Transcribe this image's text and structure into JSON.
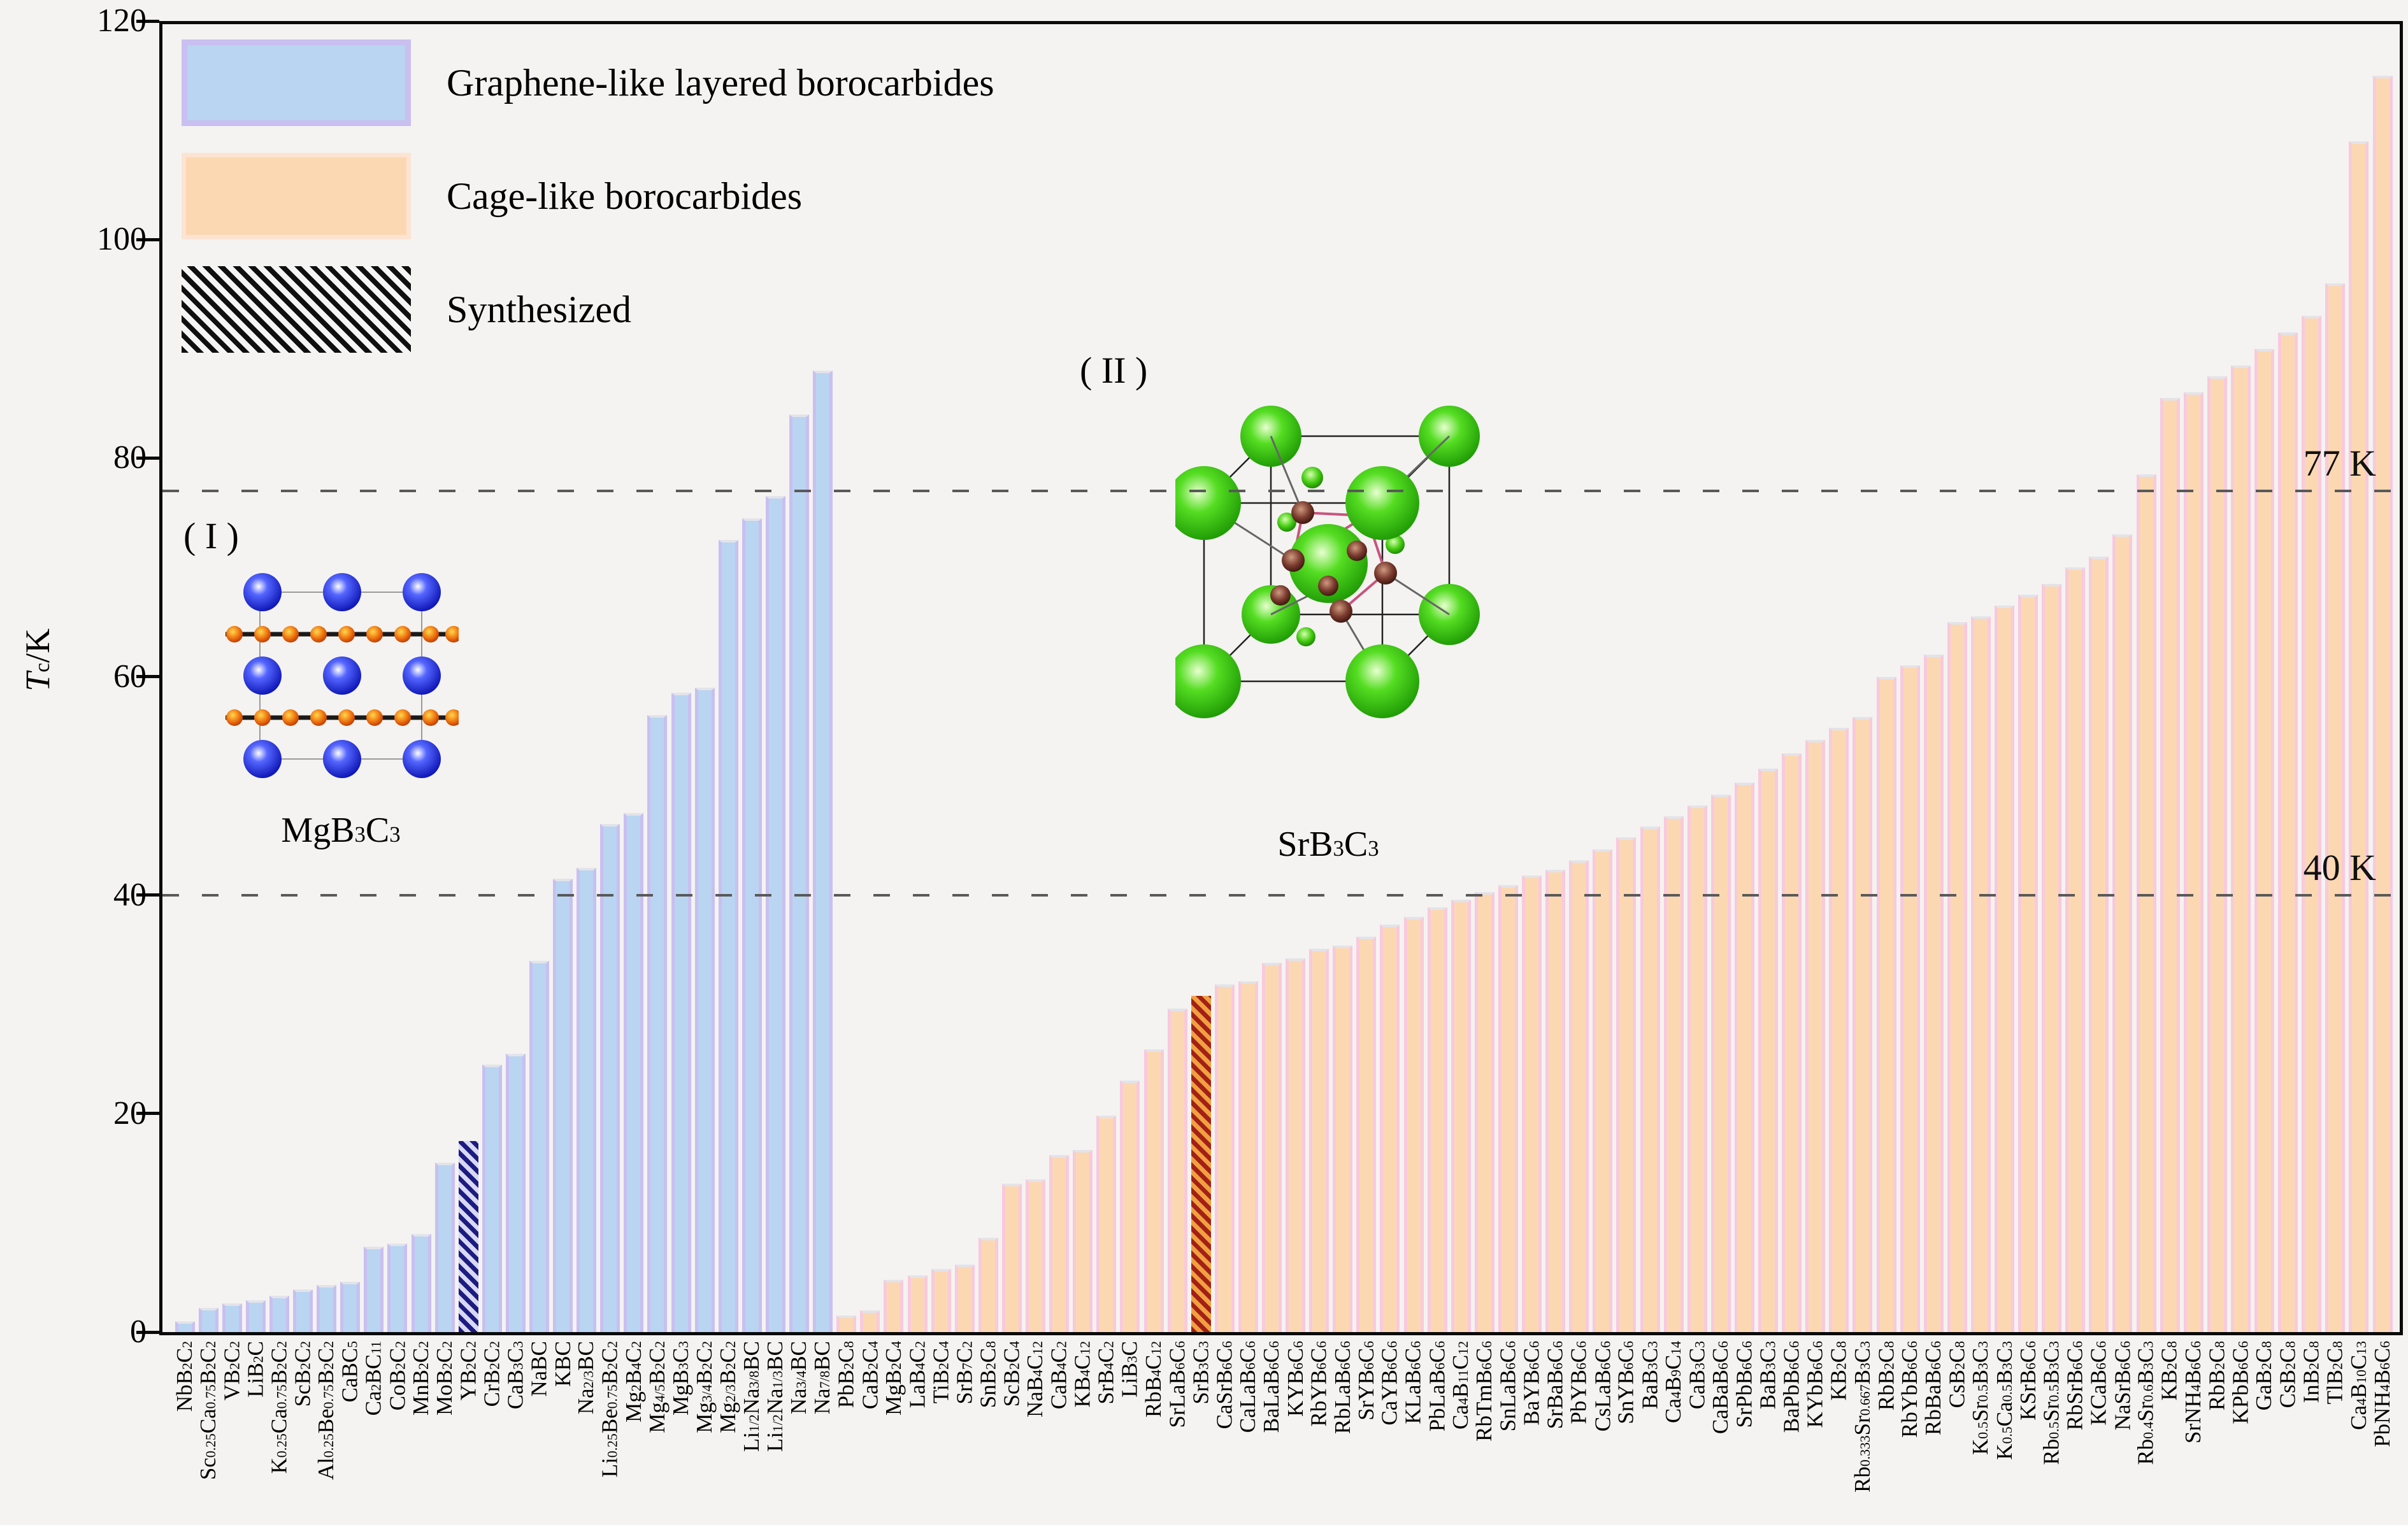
{
  "colors": {
    "background": "#f4f3f1",
    "layered_fill": "#b9d5f1",
    "layered_edge": "#c9bff0",
    "cage_fill": "#fcd8b2",
    "cage_edge": "#f9c9dc",
    "hatch_layered_dark": "#1c1c80",
    "hatch_layered_light": "#d8d8f6",
    "hatch_cage_dark": "#a32016",
    "hatch_cage_light": "#f0a040",
    "axis": "#0a0a0a",
    "dash_line": "#595959"
  },
  "legend": {
    "items": [
      {
        "label": "Graphene-like layered borocarbides",
        "swatch": "layered"
      },
      {
        "label": "Cage-like borocarbides",
        "swatch": "cage"
      },
      {
        "label": "Synthesized",
        "swatch": "synthesized-hatch"
      }
    ]
  },
  "y_axis": {
    "symbol": "T",
    "symbol_sub": "c",
    "unit": "/K"
  },
  "insets": [
    {
      "tag": "( I )",
      "formula": "MgB3C3",
      "description": "layered crystal structure"
    },
    {
      "tag": "( II )",
      "formula": "SrB3C3",
      "description": "cage crystal structure"
    }
  ],
  "chart_data": {
    "type": "bar",
    "title": "",
    "xlabel": "",
    "ylabel": "Tc/K",
    "ylim": [
      0,
      120
    ],
    "yticks": [
      0,
      20,
      40,
      60,
      80,
      100,
      120
    ],
    "grid": false,
    "legend_position": "upper left",
    "reference_lines": [
      {
        "value": 77,
        "label": "77 K"
      },
      {
        "value": 40,
        "label": "40 K"
      }
    ],
    "series": [
      {
        "name": "Graphene-like layered borocarbides",
        "fill": "#b9d5f1",
        "edge": "#c9bff0",
        "points": [
          {
            "formula": "NbB2C2",
            "tc": 1.0
          },
          {
            "formula": "Sc0.25Ca0.75B2C2",
            "tc": 2.2
          },
          {
            "formula": "VB2C2",
            "tc": 2.6
          },
          {
            "formula": "LiB2C",
            "tc": 2.9
          },
          {
            "formula": "K0.25Ca0.75B2C2",
            "tc": 3.3
          },
          {
            "formula": "ScB2C2",
            "tc": 3.9
          },
          {
            "formula": "Al0.25Be0.75B2C2",
            "tc": 4.3
          },
          {
            "formula": "CaBC5",
            "tc": 4.6
          },
          {
            "formula": "Ca2BC11",
            "tc": 7.8
          },
          {
            "formula": "CoB2C2",
            "tc": 8.1
          },
          {
            "formula": "MnB2C2",
            "tc": 9.0
          },
          {
            "formula": "MoB2C2",
            "tc": 15.5
          },
          {
            "formula": "YB2C2",
            "tc": 17.5,
            "synthesized": true
          },
          {
            "formula": "CrB2C2",
            "tc": 24.5
          },
          {
            "formula": "CaB3C3",
            "tc": 25.5
          },
          {
            "formula": "NaBC",
            "tc": 34.0
          },
          {
            "formula": "KBC",
            "tc": 41.5
          },
          {
            "formula": "Na2/3BC",
            "tc": 42.5
          },
          {
            "formula": "Li0.25Be0.75B2C2",
            "tc": 46.5
          },
          {
            "formula": "Mg2B4C2",
            "tc": 47.5
          },
          {
            "formula": "Mg4/5B2C2",
            "tc": 56.5
          },
          {
            "formula": "MgB3C3",
            "tc": 58.5
          },
          {
            "formula": "Mg3/4B2C2",
            "tc": 59.0
          },
          {
            "formula": "Mg2/3B2C2",
            "tc": 72.5
          },
          {
            "formula": "Li1/2Na3/8BC",
            "tc": 74.5
          },
          {
            "formula": "Li1/2Na1/3BC",
            "tc": 76.5
          },
          {
            "formula": "Na3/4BC",
            "tc": 84.0
          },
          {
            "formula": "Na7/8BC",
            "tc": 88.0
          }
        ]
      },
      {
        "name": "Cage-like borocarbides",
        "fill": "#fcd8b2",
        "edge": "#f9c9dc",
        "points": [
          {
            "formula": "PbB2C8",
            "tc": 1.5
          },
          {
            "formula": "CaB2C4",
            "tc": 2.0
          },
          {
            "formula": "MgB2C4",
            "tc": 4.8
          },
          {
            "formula": "LaB4C2",
            "tc": 5.2
          },
          {
            "formula": "TiB2C4",
            "tc": 5.8
          },
          {
            "formula": "SrB7C2",
            "tc": 6.2
          },
          {
            "formula": "SnB2C8",
            "tc": 8.6
          },
          {
            "formula": "ScB2C4",
            "tc": 13.6
          },
          {
            "formula": "NaB4C12",
            "tc": 14.0
          },
          {
            "formula": "CaB4C2",
            "tc": 16.2
          },
          {
            "formula": "KB4C12",
            "tc": 16.7
          },
          {
            "formula": "SrB4C2",
            "tc": 19.8
          },
          {
            "formula": "LiB3C",
            "tc": 23.0
          },
          {
            "formula": "RbB4C12",
            "tc": 25.9
          },
          {
            "formula": "SrLaB6C6",
            "tc": 29.6
          },
          {
            "formula": "SrB3C3",
            "tc": 30.8,
            "synthesized": true
          },
          {
            "formula": "CaSrB6C6",
            "tc": 31.8
          },
          {
            "formula": "CaLaB6C6",
            "tc": 32.1
          },
          {
            "formula": "BaLaB6C6",
            "tc": 33.8
          },
          {
            "formula": "KYB6C6",
            "tc": 34.2
          },
          {
            "formula": "RbYB6C6",
            "tc": 35.1
          },
          {
            "formula": "RbLaB6C6",
            "tc": 35.4
          },
          {
            "formula": "SrYB6C6",
            "tc": 36.2
          },
          {
            "formula": "CaYB6C6",
            "tc": 37.3
          },
          {
            "formula": "KLaB6C6",
            "tc": 38.0
          },
          {
            "formula": "PbLaB6C6",
            "tc": 38.9
          },
          {
            "formula": "Ca4B11C12",
            "tc": 39.6
          },
          {
            "formula": "RbTmB6C6",
            "tc": 40.3
          },
          {
            "formula": "SnLaB6C6",
            "tc": 40.9
          },
          {
            "formula": "BaYB6C6",
            "tc": 41.8
          },
          {
            "formula": "SrBaB6C6",
            "tc": 42.3
          },
          {
            "formula": "PbYB6C6",
            "tc": 43.2
          },
          {
            "formula": "CsLaB6C6",
            "tc": 44.2
          },
          {
            "formula": "SnYB6C6",
            "tc": 45.3
          },
          {
            "formula": "BaB3C3",
            "tc": 46.3
          },
          {
            "formula": "Ca4B9C14",
            "tc": 47.2
          },
          {
            "formula": "CaB3C3",
            "tc": 48.2
          },
          {
            "formula": "CaBaB6C6",
            "tc": 49.2
          },
          {
            "formula": "SrPbB6C6",
            "tc": 50.3
          },
          {
            "formula": "BaB3C3",
            "tc": 51.6
          },
          {
            "formula": "BaPbB6C6",
            "tc": 53.0
          },
          {
            "formula": "KYbB6C6",
            "tc": 54.2
          },
          {
            "formula": "KB2C8",
            "tc": 55.3
          },
          {
            "formula": "Rb0.333Sr0.667B3C3",
            "tc": 56.3
          },
          {
            "formula": "RbB2C8",
            "tc": 60.0
          },
          {
            "formula": "RbYbB6C6",
            "tc": 61.0
          },
          {
            "formula": "RbBaB6C6",
            "tc": 62.0
          },
          {
            "formula": "CsB2C8",
            "tc": 65.0
          },
          {
            "formula": "K0.5Sr0.5B3C3",
            "tc": 65.5
          },
          {
            "formula": "K0.5Ca0.5B3C3",
            "tc": 66.5
          },
          {
            "formula": "KSrB6C6",
            "tc": 67.5
          },
          {
            "formula": "Rb0.5Sr0.5B3C3",
            "tc": 68.5
          },
          {
            "formula": "RbSrB6C6",
            "tc": 70.0
          },
          {
            "formula": "KCaB6C6",
            "tc": 71.0
          },
          {
            "formula": "NaSrB6C6",
            "tc": 73.0
          },
          {
            "formula": "Rb0.4Sr0.6B3C3",
            "tc": 78.5
          },
          {
            "formula": "KB2C8",
            "tc": 85.5
          },
          {
            "formula": "SrNH4B6C6",
            "tc": 86.0
          },
          {
            "formula": "RbB2C8",
            "tc": 87.5
          },
          {
            "formula": "KPbB6C6",
            "tc": 88.5
          },
          {
            "formula": "GaB2C8",
            "tc": 90.0
          },
          {
            "formula": "CsB2C8",
            "tc": 91.5
          },
          {
            "formula": "InB2C8",
            "tc": 93.0
          },
          {
            "formula": "TlB2C8",
            "tc": 96.0
          },
          {
            "formula": "Ca4B10C13",
            "tc": 109.0
          },
          {
            "formula": "PbNH4B6C6",
            "tc": 115.0
          }
        ]
      }
    ]
  }
}
